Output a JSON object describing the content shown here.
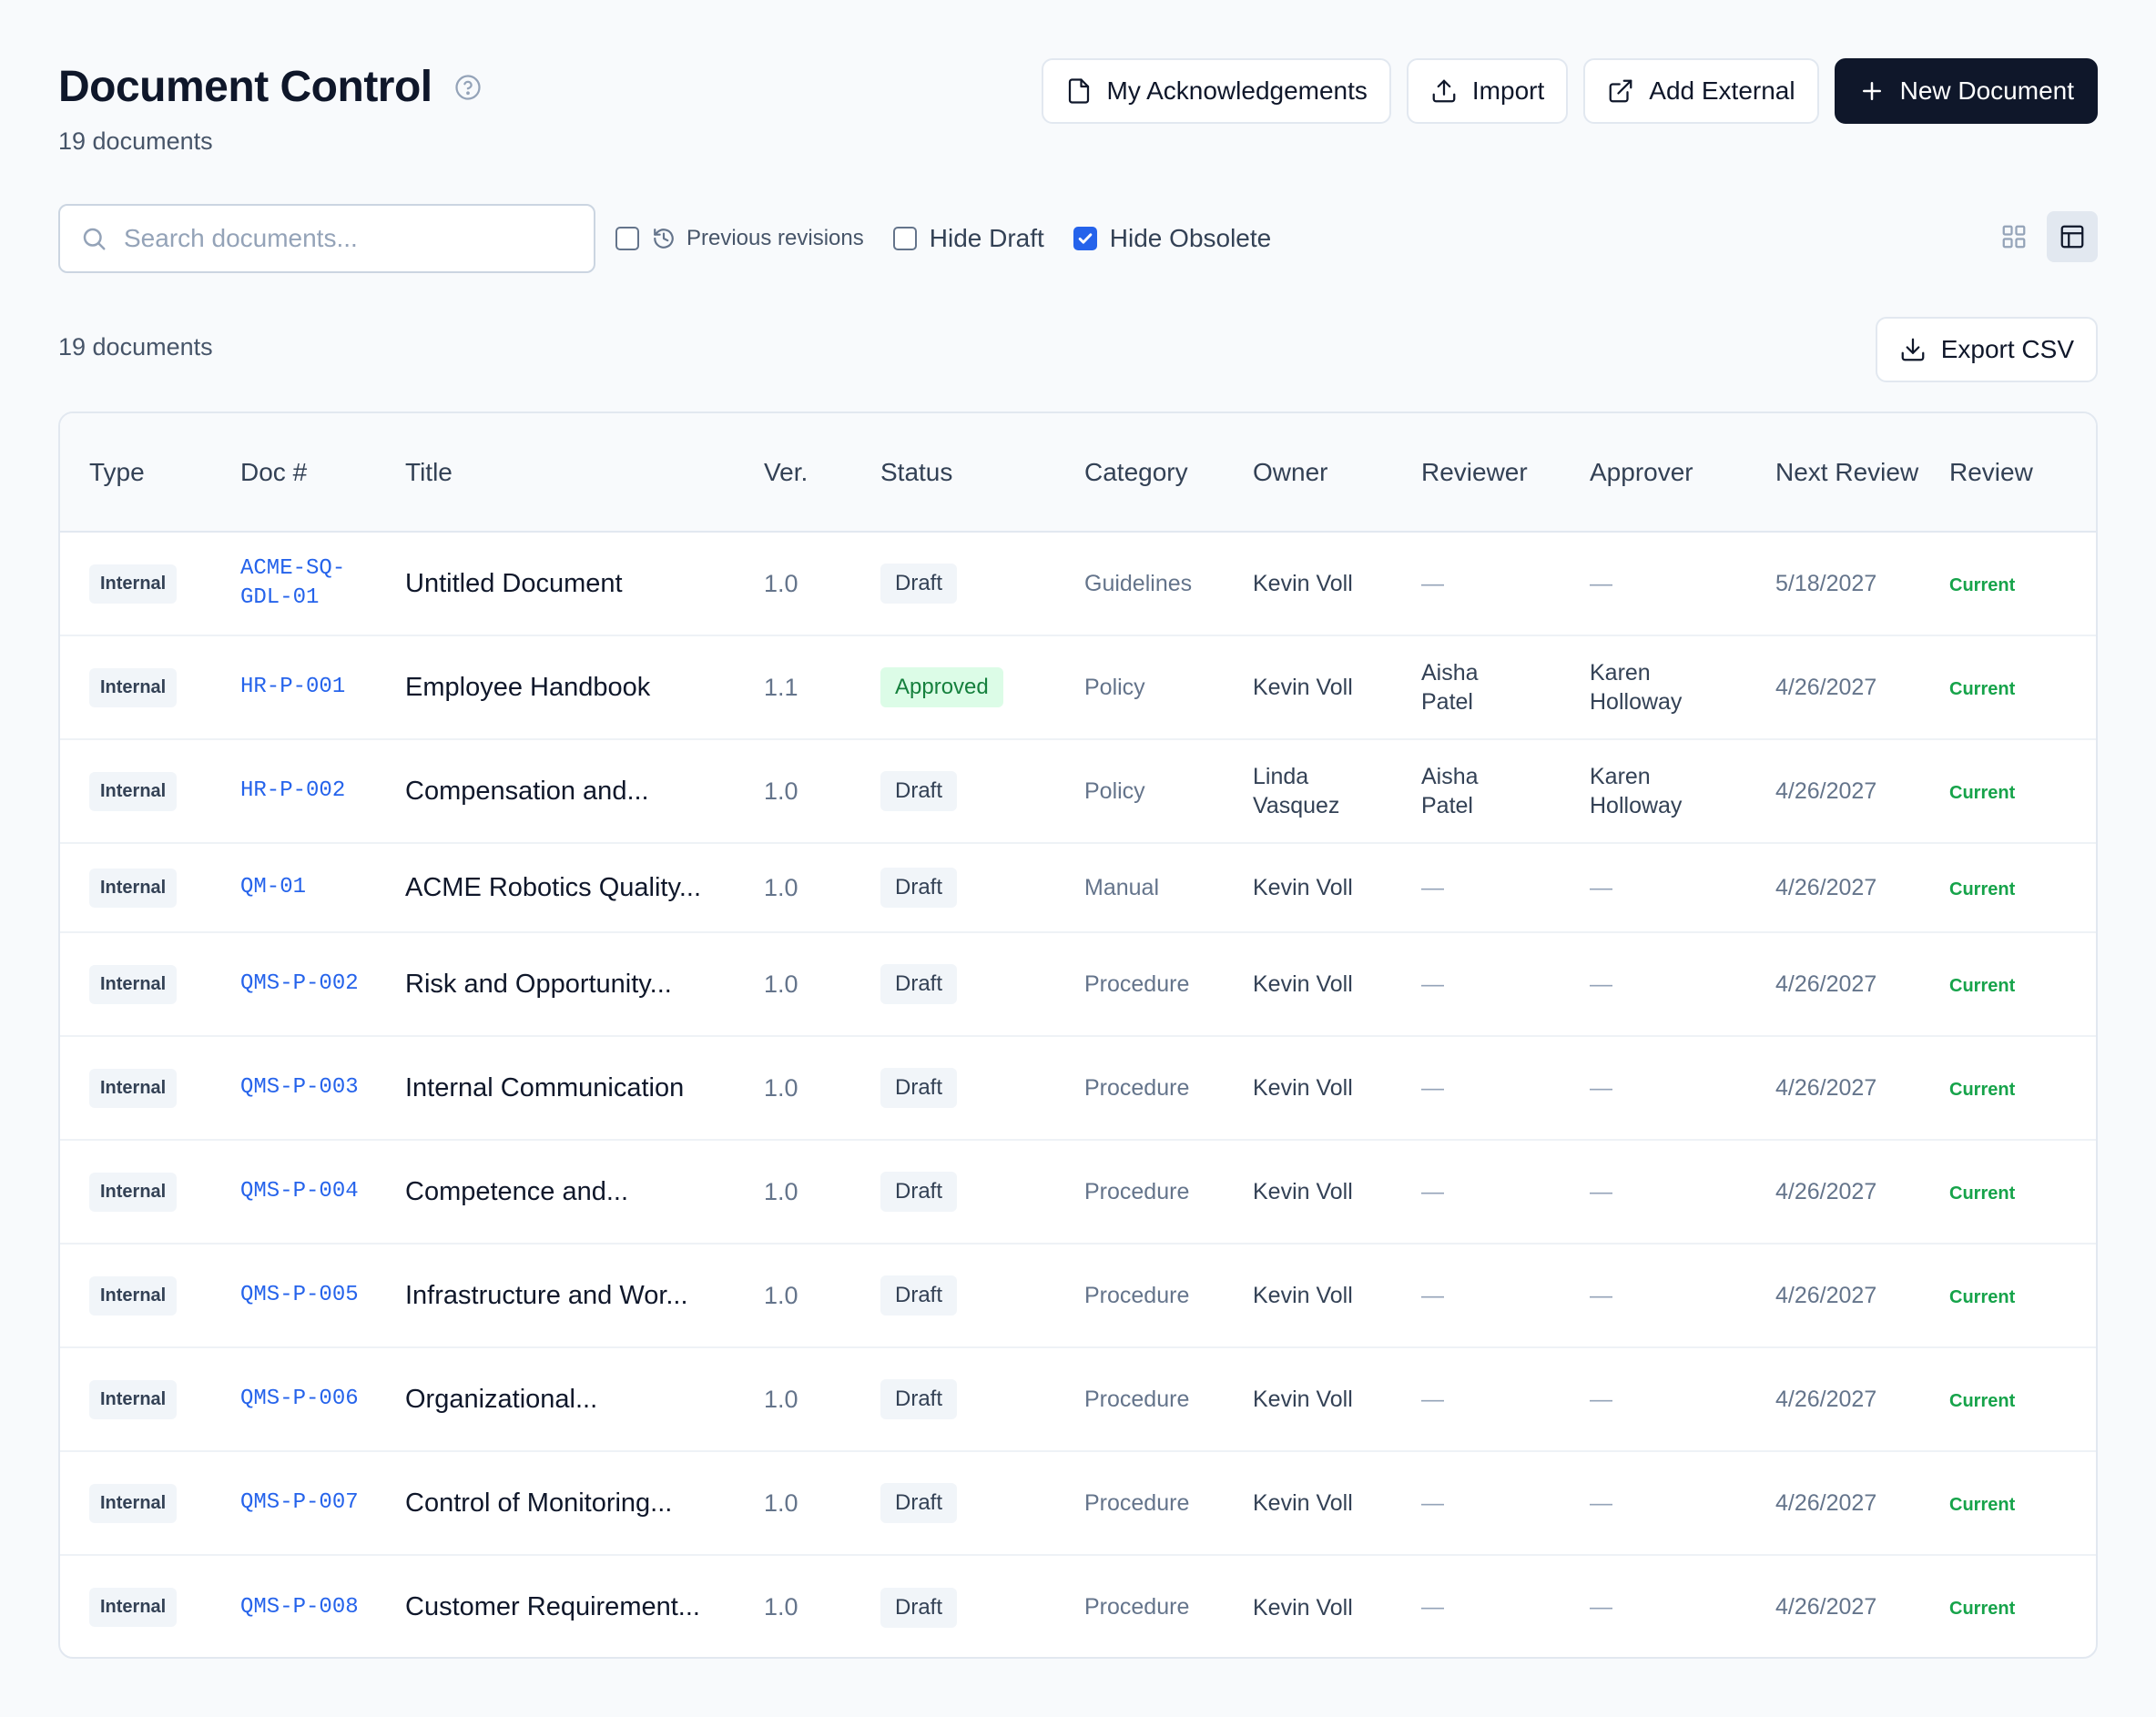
{
  "header": {
    "title": "Document Control",
    "subtitle": "19 documents",
    "buttons": {
      "acknowledgements": "My Acknowledgements",
      "import": "Import",
      "add_external": "Add External",
      "new_document": "New Document"
    }
  },
  "toolbar": {
    "search_placeholder": "Search documents...",
    "search_value": "",
    "previous_revisions": {
      "label": "Previous revisions",
      "checked": false
    },
    "hide_draft": {
      "label": "Hide Draft",
      "checked": false
    },
    "hide_obsolete": {
      "label": "Hide Obsolete",
      "checked": true
    },
    "active_view": "table"
  },
  "list": {
    "count_text": "19 documents",
    "export_label": "Export CSV"
  },
  "table": {
    "columns": [
      "Type",
      "Doc #",
      "Title",
      "Ver.",
      "Status",
      "Category",
      "Owner",
      "Reviewer",
      "Approver",
      "Next Review",
      "Review"
    ],
    "rows": [
      {
        "type": "Internal",
        "doc": "ACME-SQ-GDL-01",
        "title": "Untitled Document",
        "ver": "1.0",
        "status": "Draft",
        "category": "Guidelines",
        "owner": "Kevin Voll",
        "reviewer": "—",
        "approver": "—",
        "next_review": "5/18/2027",
        "review": "Current"
      },
      {
        "type": "Internal",
        "doc": "HR-P-001",
        "title": "Employee Handbook",
        "ver": "1.1",
        "status": "Approved",
        "category": "Policy",
        "owner": "Kevin Voll",
        "reviewer": "Aisha Patel",
        "approver": "Karen Holloway",
        "next_review": "4/26/2027",
        "review": "Current"
      },
      {
        "type": "Internal",
        "doc": "HR-P-002",
        "title": "Compensation and...",
        "ver": "1.0",
        "status": "Draft",
        "category": "Policy",
        "owner": "Linda Vasquez",
        "reviewer": "Aisha Patel",
        "approver": "Karen Holloway",
        "next_review": "4/26/2027",
        "review": "Current"
      },
      {
        "type": "Internal",
        "doc": "QM-01",
        "title": "ACME Robotics Quality...",
        "ver": "1.0",
        "status": "Draft",
        "category": "Manual",
        "owner": "Kevin Voll",
        "reviewer": "—",
        "approver": "—",
        "next_review": "4/26/2027",
        "review": "Current"
      },
      {
        "type": "Internal",
        "doc": "QMS-P-002",
        "title": "Risk and Opportunity...",
        "ver": "1.0",
        "status": "Draft",
        "category": "Procedure",
        "owner": "Kevin Voll",
        "reviewer": "—",
        "approver": "—",
        "next_review": "4/26/2027",
        "review": "Current"
      },
      {
        "type": "Internal",
        "doc": "QMS-P-003",
        "title": "Internal Communication",
        "ver": "1.0",
        "status": "Draft",
        "category": "Procedure",
        "owner": "Kevin Voll",
        "reviewer": "—",
        "approver": "—",
        "next_review": "4/26/2027",
        "review": "Current"
      },
      {
        "type": "Internal",
        "doc": "QMS-P-004",
        "title": "Competence and...",
        "ver": "1.0",
        "status": "Draft",
        "category": "Procedure",
        "owner": "Kevin Voll",
        "reviewer": "—",
        "approver": "—",
        "next_review": "4/26/2027",
        "review": "Current"
      },
      {
        "type": "Internal",
        "doc": "QMS-P-005",
        "title": "Infrastructure and Wor...",
        "ver": "1.0",
        "status": "Draft",
        "category": "Procedure",
        "owner": "Kevin Voll",
        "reviewer": "—",
        "approver": "—",
        "next_review": "4/26/2027",
        "review": "Current"
      },
      {
        "type": "Internal",
        "doc": "QMS-P-006",
        "title": "Organizational...",
        "ver": "1.0",
        "status": "Draft",
        "category": "Procedure",
        "owner": "Kevin Voll",
        "reviewer": "—",
        "approver": "—",
        "next_review": "4/26/2027",
        "review": "Current"
      },
      {
        "type": "Internal",
        "doc": "QMS-P-007",
        "title": "Control of Monitoring...",
        "ver": "1.0",
        "status": "Draft",
        "category": "Procedure",
        "owner": "Kevin Voll",
        "reviewer": "—",
        "approver": "—",
        "next_review": "4/26/2027",
        "review": "Current"
      },
      {
        "type": "Internal",
        "doc": "QMS-P-008",
        "title": "Customer Requirement...",
        "ver": "1.0",
        "status": "Draft",
        "category": "Procedure",
        "owner": "Kevin Voll",
        "reviewer": "—",
        "approver": "—",
        "next_review": "4/26/2027",
        "review": "Current"
      }
    ]
  },
  "icons": {
    "help": "help-circle-icon",
    "acknowledgements": "file-icon",
    "import": "upload-icon",
    "add_external": "external-link-icon",
    "new_document": "plus-icon",
    "search": "search-icon",
    "history": "history-icon",
    "grid_view": "grid-icon",
    "table_view": "table-icon",
    "export": "download-icon"
  },
  "colors": {
    "primary": "#0f172a",
    "link": "#2563eb",
    "approved_bg": "#dcfce7",
    "approved_text": "#15803d",
    "current": "#16a34a",
    "checkbox": "#2563eb"
  }
}
